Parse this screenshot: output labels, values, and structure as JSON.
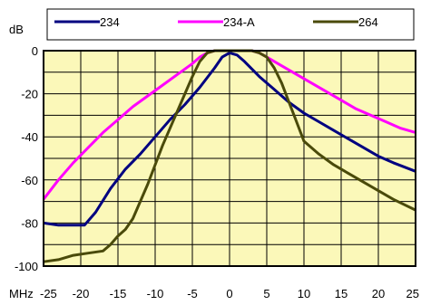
{
  "chart_data": {
    "type": "line",
    "ylabel": "dB",
    "xlabel": "MHz",
    "xlim": [
      -25,
      25
    ],
    "ylim": [
      -100,
      0
    ],
    "x_ticks": [
      -25,
      -20,
      -15,
      -10,
      -5,
      0,
      5,
      10,
      15,
      20,
      25
    ],
    "y_ticks": [
      0,
      -20,
      -40,
      -60,
      -80,
      -100
    ],
    "grid": true,
    "legend_position": "top",
    "plot_background": "#fbf8b9",
    "series": [
      {
        "name": "234",
        "color": "#000080",
        "x": [
          -25,
          -23,
          -21,
          -19.5,
          -18,
          -16,
          -14,
          -12,
          -10,
          -8,
          -6,
          -4,
          -2,
          -1,
          0,
          1,
          2,
          4,
          6,
          8,
          10,
          12,
          14,
          16,
          18,
          20,
          22,
          25
        ],
        "y": [
          -80,
          -81,
          -81,
          -81,
          -75,
          -64,
          -55,
          -48,
          -40,
          -32,
          -25,
          -17,
          -8,
          -3,
          -1,
          -2,
          -5,
          -12,
          -18,
          -24,
          -29,
          -33,
          -37,
          -41,
          -45,
          -49,
          -52,
          -56
        ]
      },
      {
        "name": "234-A",
        "color": "#ff00ff",
        "x": [
          -25,
          -23,
          -21,
          -19,
          -17,
          -15,
          -13,
          -11,
          -9,
          -7,
          -5,
          -4,
          -3,
          -2,
          -1,
          0,
          1,
          2,
          3,
          4,
          5,
          7,
          9,
          11,
          13,
          15,
          17,
          19,
          21,
          23,
          25
        ],
        "y": [
          -69,
          -60,
          -52,
          -45,
          -38,
          -32,
          -26,
          -21,
          -16,
          -11,
          -6,
          -3,
          -1,
          0,
          0,
          0,
          0,
          0,
          0,
          -1,
          -3,
          -7,
          -11,
          -15,
          -19,
          -23,
          -27,
          -30,
          -33,
          -36,
          -38
        ]
      },
      {
        "name": "264",
        "color": "#4a4a0a",
        "x": [
          -25,
          -23,
          -21,
          -19,
          -17,
          -16,
          -15,
          -14,
          -13,
          -12,
          -11,
          -10,
          -9,
          -8,
          -7,
          -6,
          -5,
          -4,
          -3,
          -2,
          -1,
          0,
          1,
          2,
          3,
          4,
          5,
          6,
          7,
          8,
          9,
          10,
          12,
          14,
          16,
          18,
          20,
          22,
          25
        ],
        "y": [
          -98,
          -97,
          -95,
          -94,
          -93,
          -90,
          -86,
          -83,
          -78,
          -70,
          -62,
          -53,
          -44,
          -36,
          -28,
          -20,
          -12,
          -5,
          -1,
          0,
          0,
          0,
          0,
          0,
          0,
          -1,
          -3,
          -8,
          -15,
          -24,
          -33,
          -42,
          -48,
          -53,
          -57,
          -61,
          -65,
          -69,
          -74
        ]
      }
    ]
  }
}
